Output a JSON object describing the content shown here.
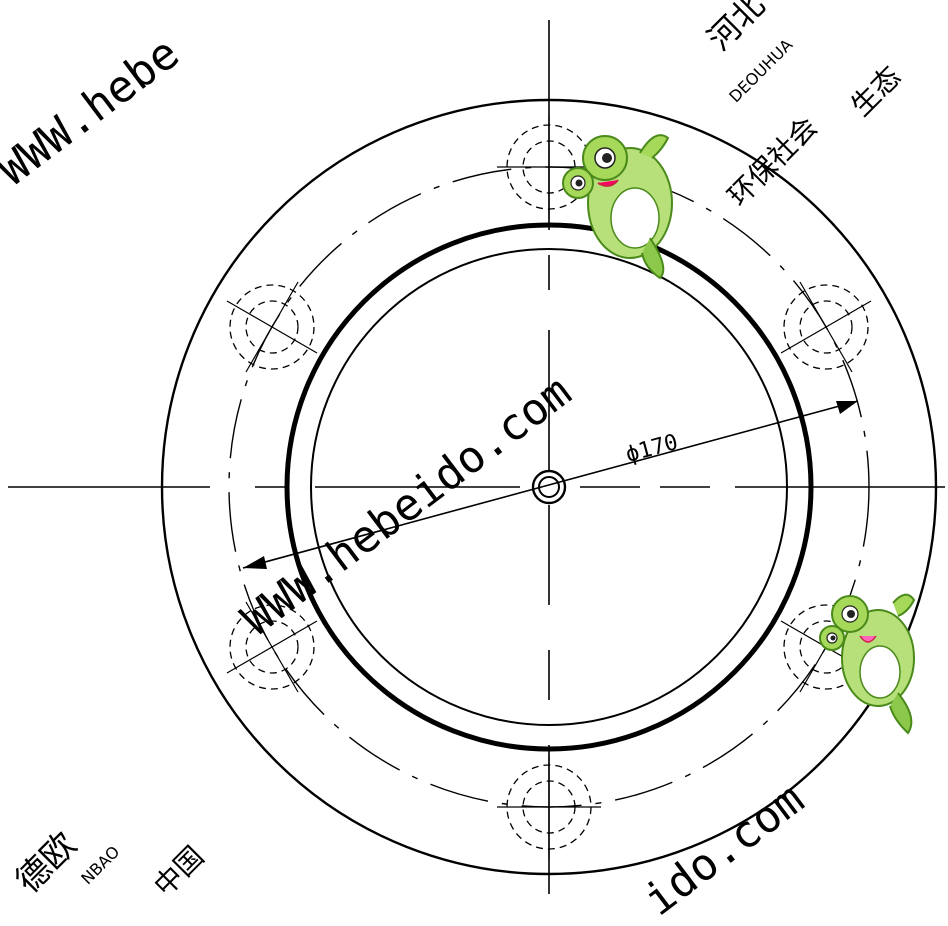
{
  "drawing": {
    "dimension_label": "ϕ170"
  },
  "watermarks": {
    "url_diagonal_center": "WWW.hebeido.com",
    "url_top_left": "WWW.hebe",
    "url_bottom_right": "ido.com",
    "cjk_top_right_1": "河北",
    "cjk_top_right_2": "DEOUHUA",
    "cjk_top_right_3": "环保社会",
    "cjk_top_right_4": "生态",
    "cjk_bottom_left_1": "德欧",
    "cjk_bottom_left_2": "NBAO",
    "cjk_bottom_left_3": "中国"
  },
  "mascots": [
    {
      "icon": "frog-mascot-icon",
      "position_hint": "top-center"
    },
    {
      "icon": "frog-mascot-icon",
      "position_hint": "right-lower"
    }
  ]
}
